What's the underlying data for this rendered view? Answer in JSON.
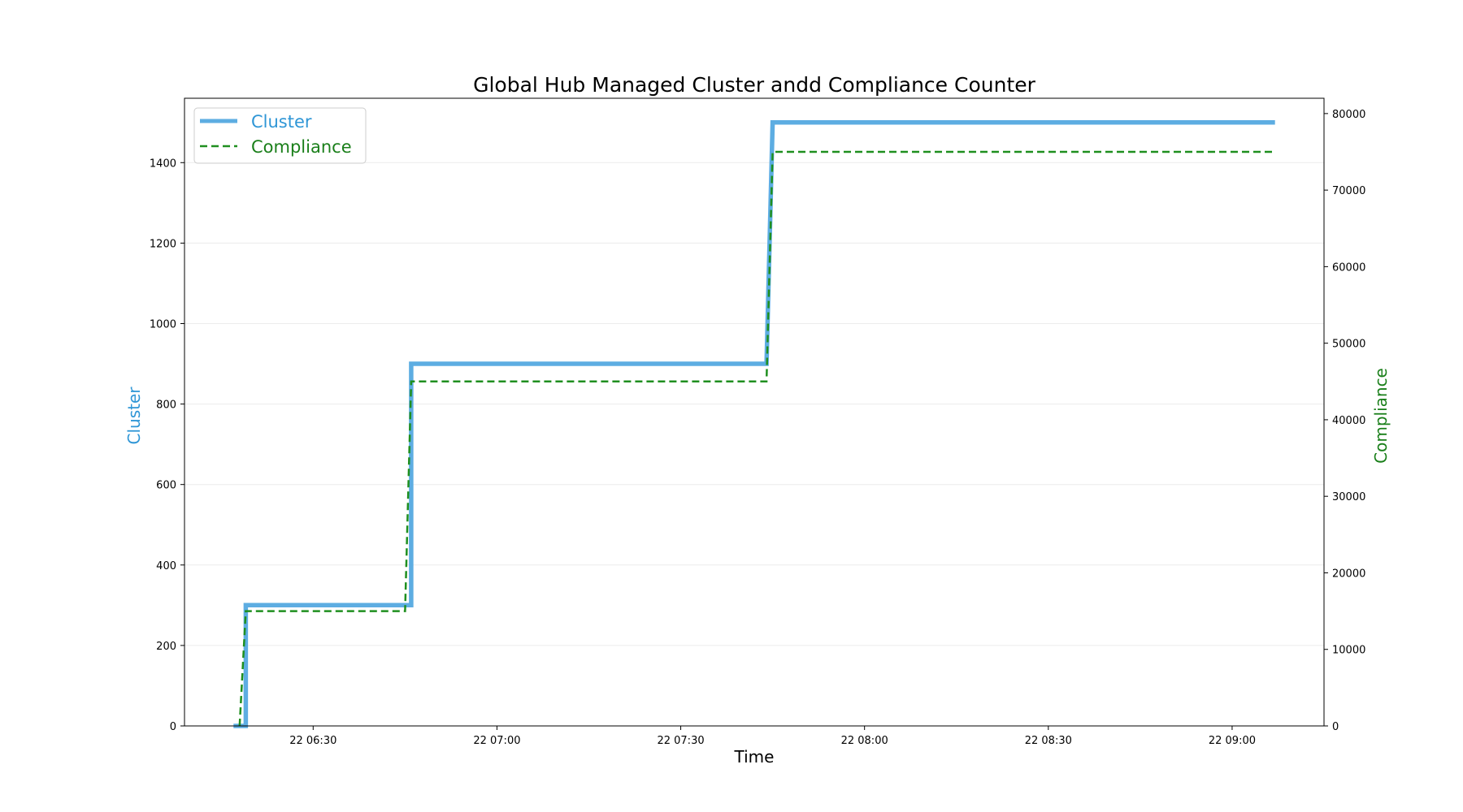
{
  "chart_data": {
    "type": "line",
    "title": "Global Hub Managed Cluster andd Compliance Counter",
    "xlabel": "Time",
    "x_ticks": [
      "22 06:30",
      "22 07:00",
      "22 07:30",
      "22 08:00",
      "22 08:30",
      "22 09:00"
    ],
    "x_tick_times": [
      "06:30",
      "07:00",
      "07:30",
      "08:00",
      "08:30",
      "09:00"
    ],
    "xlim": [
      "06:09",
      "09:15"
    ],
    "grid": "horizontal",
    "legend_position": "top-left",
    "y_left": {
      "label": "Cluster",
      "color": "#2f96d6",
      "lim": [
        0,
        1560
      ],
      "ticks": [
        "0",
        "200",
        "400",
        "600",
        "800",
        "1000",
        "1200",
        "1400"
      ],
      "tick_values": [
        0,
        200,
        400,
        600,
        800,
        1000,
        1200,
        1400
      ]
    },
    "y_right": {
      "label": "Compliance",
      "color": "#1a7f1a",
      "lim": [
        0,
        82000
      ],
      "ticks": [
        "0",
        "10000",
        "20000",
        "30000",
        "40000",
        "50000",
        "60000",
        "70000",
        "80000"
      ],
      "tick_values": [
        0,
        10000,
        20000,
        30000,
        40000,
        50000,
        60000,
        70000,
        80000
      ]
    },
    "series": [
      {
        "name": "Cluster",
        "axis": "left",
        "color": "#5dade2",
        "style": "solid",
        "points": [
          [
            "06:17",
            0
          ],
          [
            "06:19",
            0
          ],
          [
            "06:19",
            300
          ],
          [
            "06:46",
            300
          ],
          [
            "06:46",
            900
          ],
          [
            "07:44",
            900
          ],
          [
            "07:45",
            1500
          ],
          [
            "09:07",
            1500
          ]
        ]
      },
      {
        "name": "Compliance",
        "axis": "right",
        "color": "#1f8f1f",
        "style": "dashed",
        "points": [
          [
            "06:18",
            0
          ],
          [
            "06:19",
            15000
          ],
          [
            "06:45",
            15000
          ],
          [
            "06:46",
            45000
          ],
          [
            "07:44",
            45000
          ],
          [
            "07:45",
            75000
          ],
          [
            "09:07",
            75000
          ]
        ]
      }
    ]
  }
}
